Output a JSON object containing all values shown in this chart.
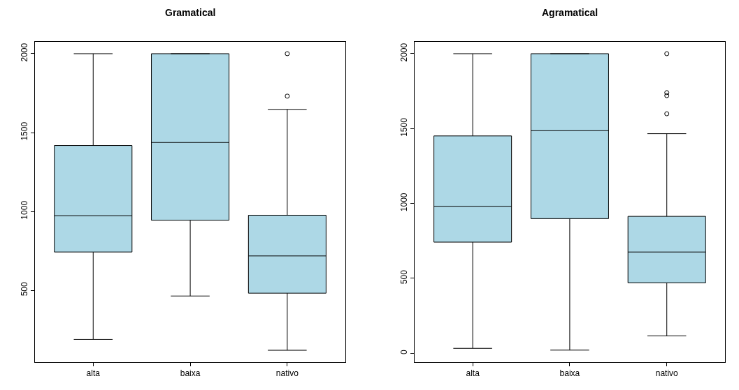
{
  "chart_data": [
    {
      "type": "box",
      "title": "Gramatical",
      "categories": [
        "alta",
        "baixa",
        "nativo"
      ],
      "color": "#add8e6",
      "ylim": [
        45,
        2075
      ],
      "yticks": [
        500,
        1000,
        1500,
        2000
      ],
      "boxes": [
        {
          "low": 189,
          "q1": 743,
          "median": 973,
          "q3": 1418,
          "high": 2000
        },
        {
          "low": 464,
          "q1": 944,
          "median": 1437,
          "q3": 2000,
          "high": 2000
        },
        {
          "low": 120,
          "q1": 482,
          "median": 718,
          "q3": 976,
          "high": 1647,
          "outliers": [
            2000,
            1731
          ]
        }
      ]
    },
    {
      "type": "box",
      "title": "Agramatical",
      "categories": [
        "alta",
        "baixa",
        "nativo"
      ],
      "color": "#add8e6",
      "ylim": [
        -59,
        2079
      ],
      "yticks": [
        0,
        500,
        1000,
        1500,
        2000
      ],
      "boxes": [
        {
          "low": 33,
          "q1": 742,
          "median": 981,
          "q3": 1451,
          "high": 2000
        },
        {
          "low": 21,
          "q1": 899,
          "median": 1486,
          "q3": 2000,
          "high": 2000
        },
        {
          "low": 116,
          "q1": 470,
          "median": 676,
          "q3": 914,
          "high": 1466,
          "outliers": [
            2000,
            1740,
            1720,
            1599
          ]
        }
      ]
    }
  ]
}
